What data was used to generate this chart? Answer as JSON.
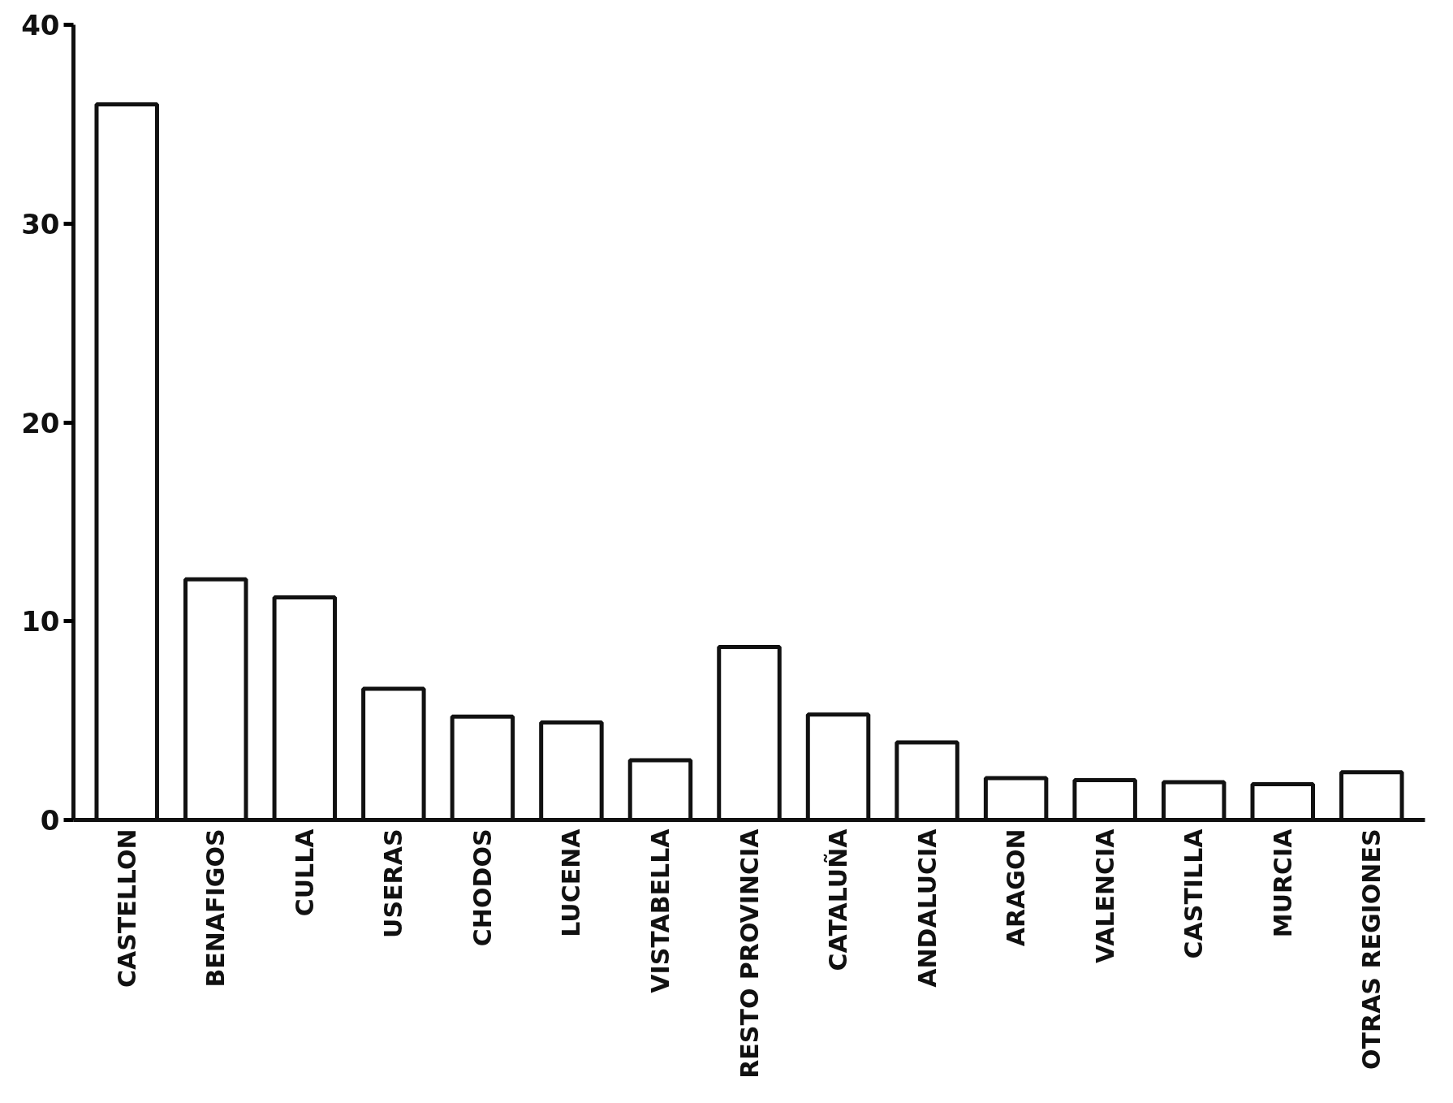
{
  "chart_data": {
    "type": "bar",
    "categories": [
      "CASTELLON",
      "BENAFIGOS",
      "CULLA",
      "USERAS",
      "CHODOS",
      "LUCENA",
      "VISTABELLA",
      "RESTO PROVINCIA",
      "CATALUÑA",
      "ANDALUCIA",
      "ARAGON",
      "VALENCIA",
      "CASTILLA",
      "MURCIA",
      "OTRAS REGIONES"
    ],
    "values": [
      36,
      12.1,
      11.2,
      6.6,
      5.2,
      4.9,
      3,
      8.7,
      5.3,
      3.9,
      2.1,
      2,
      1.9,
      1.8,
      2.4
    ],
    "color": "#ffffff",
    "ylim": [
      0,
      40
    ],
    "yticks": [
      0,
      10,
      20,
      30,
      40
    ]
  }
}
